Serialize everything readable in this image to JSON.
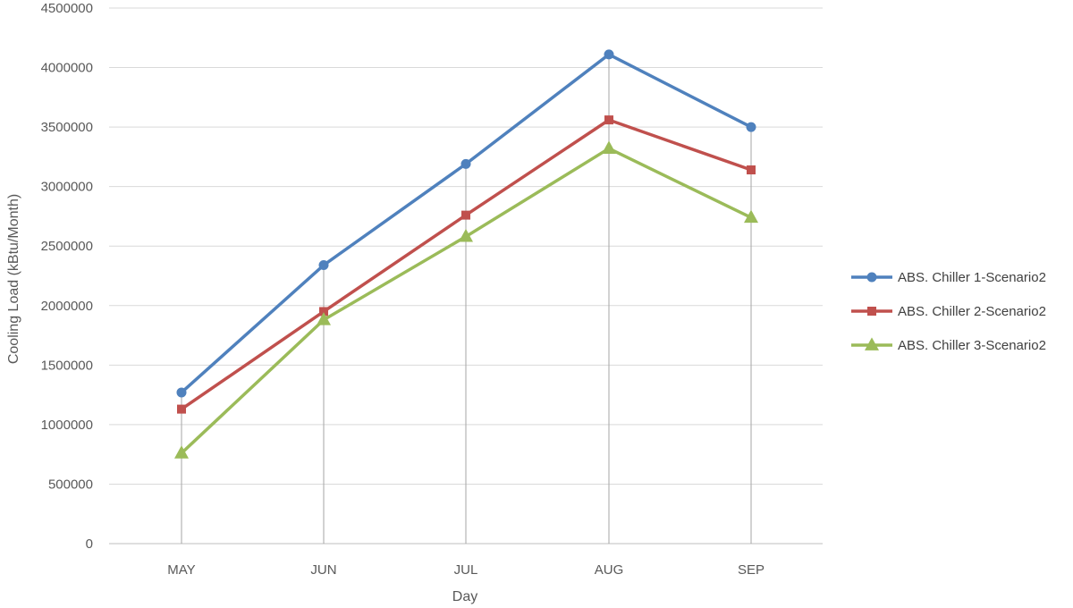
{
  "chart_data": {
    "type": "line",
    "title": "",
    "xlabel": "Day",
    "ylabel": "Cooling Load (kBtu/Month)",
    "categories": [
      "MAY",
      "JUN",
      "JUL",
      "AUG",
      "SEP"
    ],
    "ylim": [
      0,
      4500000
    ],
    "yticks": [
      "0",
      "500000",
      "1000000",
      "1500000",
      "2000000",
      "2500000",
      "3000000",
      "3500000",
      "4000000",
      "4500000"
    ],
    "grid": true,
    "drop_lines": true,
    "legend_position": "right",
    "series": [
      {
        "name": "ABS. Chiller 1-Scenario2",
        "color": "#4F81BD",
        "marker": "circle",
        "values": [
          1270000,
          2340000,
          3190000,
          4110000,
          3500000
        ]
      },
      {
        "name": "ABS. Chiller 2-Scenario2",
        "color": "#C0504D",
        "marker": "square",
        "values": [
          1130000,
          1950000,
          2760000,
          3560000,
          3140000
        ]
      },
      {
        "name": "ABS. Chiller 3-Scenario2",
        "color": "#9BBB59",
        "marker": "triangle",
        "values": [
          760000,
          1880000,
          2580000,
          3320000,
          2740000
        ]
      }
    ]
  }
}
